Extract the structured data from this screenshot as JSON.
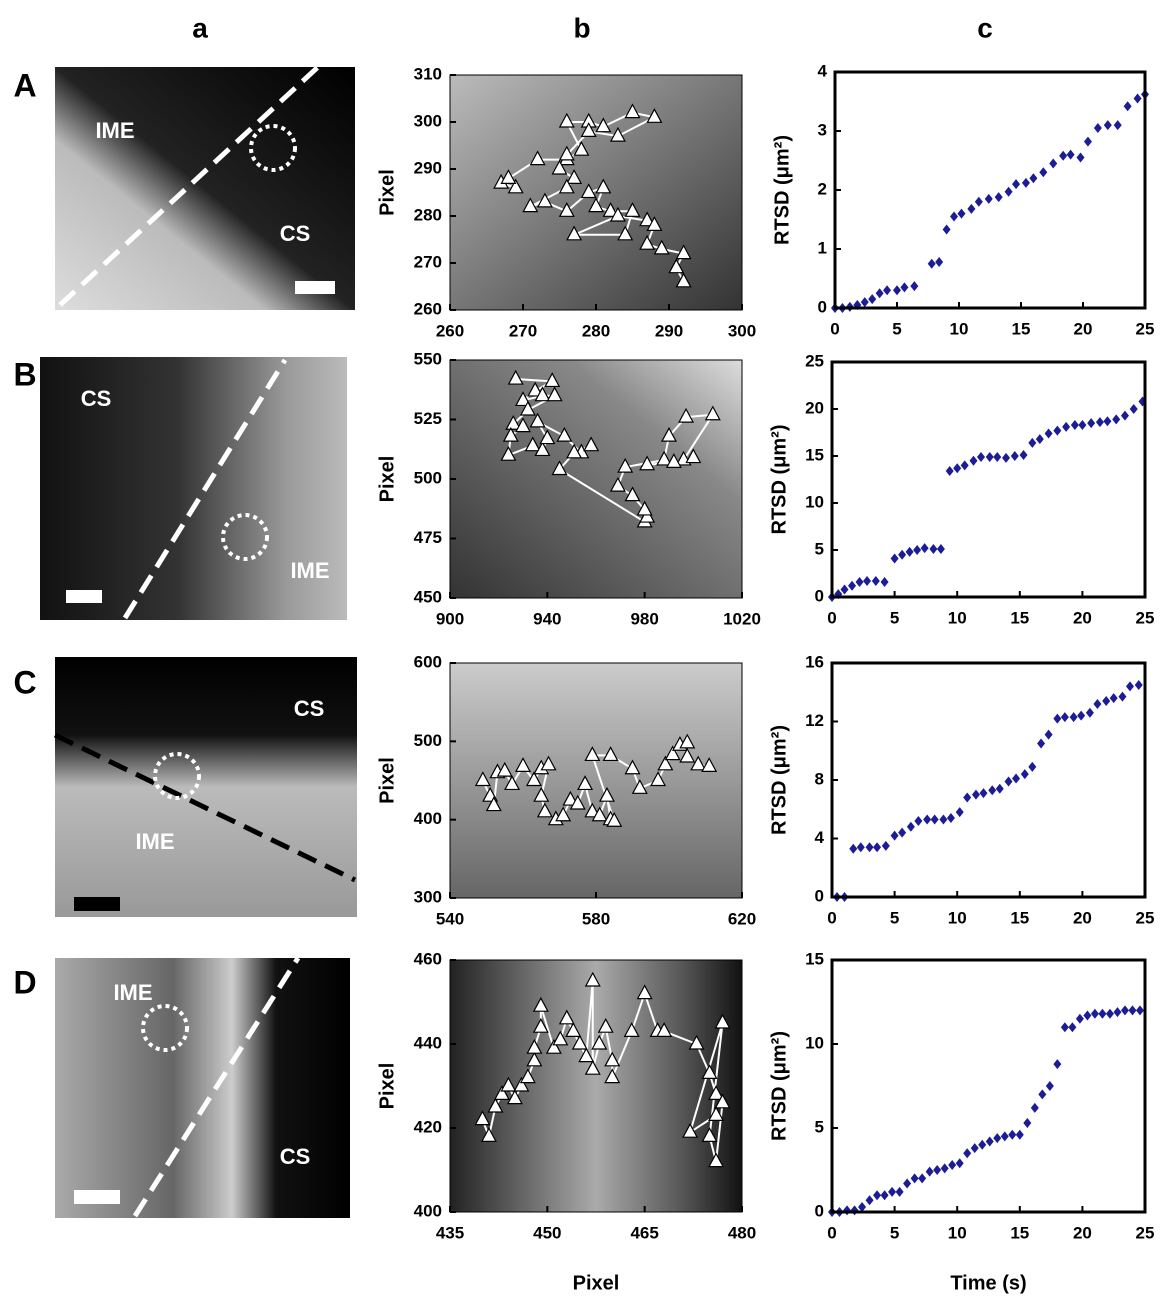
{
  "column_labels": [
    "a",
    "b",
    "c"
  ],
  "row_labels": [
    "A",
    "B",
    "C",
    "D"
  ],
  "images": [
    {
      "labels": [
        "IME",
        "CS"
      ]
    },
    {
      "labels": [
        "CS",
        "IME"
      ]
    },
    {
      "labels": [
        "CS",
        "IME"
      ]
    },
    {
      "labels": [
        "IME",
        "CS"
      ]
    }
  ],
  "chart_data": [
    {
      "type": "line",
      "ylabel": "Pixel",
      "color": "#ffffff",
      "x": [
        267,
        269,
        268,
        272,
        276,
        278,
        276,
        279,
        281,
        285,
        288,
        283,
        279,
        276,
        275,
        277,
        276,
        271,
        273,
        276,
        279,
        281,
        280,
        282,
        285,
        284,
        277,
        283,
        287,
        288,
        287,
        289,
        292,
        291,
        292
      ],
      "values": [
        287,
        286,
        288,
        292,
        292,
        294,
        300,
        300,
        299,
        302,
        301,
        297,
        298,
        293,
        290,
        288,
        286,
        282,
        283,
        281,
        285,
        286,
        282,
        281,
        281,
        276,
        276,
        280,
        279,
        278,
        274,
        273,
        272,
        269,
        266
      ],
      "xlim": [
        260,
        300
      ],
      "xticks": [
        260,
        270,
        280,
        290,
        300
      ],
      "ylim": [
        260,
        310
      ],
      "yticks": [
        260,
        270,
        280,
        290,
        300,
        310
      ]
    },
    {
      "type": "scatter",
      "ylabel": "RTSD (μm²)",
      "color": "#1c1c96",
      "x": [
        0,
        0.6,
        1.2,
        1.8,
        2.4,
        3,
        3.6,
        4.2,
        5,
        5.6,
        6.4,
        7.8,
        8.4,
        9,
        9.6,
        10.2,
        11,
        11.6,
        12.4,
        13.2,
        14,
        14.6,
        15.4,
        16,
        16.8,
        17.6,
        18.4,
        19,
        19.8,
        20.4,
        21.2,
        22,
        22.8,
        23.6,
        24.4,
        25
      ],
      "values": [
        0,
        0,
        0.02,
        0.05,
        0.1,
        0.15,
        0.25,
        0.3,
        0.3,
        0.35,
        0.37,
        0.75,
        0.78,
        1.33,
        1.55,
        1.6,
        1.68,
        1.8,
        1.85,
        1.88,
        1.97,
        2.1,
        2.12,
        2.2,
        2.3,
        2.45,
        2.58,
        2.6,
        2.55,
        2.82,
        3.05,
        3.1,
        3.1,
        3.42,
        3.55,
        3.62
      ],
      "xlim": [
        0,
        25
      ],
      "xticks": [
        0,
        5,
        10,
        15,
        20,
        25
      ],
      "ylim": [
        0,
        4
      ],
      "yticks": [
        0,
        1,
        2,
        3,
        4
      ]
    },
    {
      "type": "line",
      "ylabel": "Pixel",
      "color": "#ffffff",
      "x": [
        927,
        942,
        935,
        930,
        938,
        943,
        932,
        926,
        930,
        925,
        924,
        934,
        938,
        940,
        936,
        947,
        954,
        958,
        951,
        945,
        980,
        981,
        980,
        975,
        969,
        972,
        988,
        990,
        997,
        1008,
        996,
        1000,
        992,
        981
      ],
      "values": [
        542,
        541,
        537,
        533,
        535,
        535,
        529,
        523,
        522,
        518,
        510,
        514,
        512,
        517,
        524,
        518,
        511,
        514,
        511,
        504,
        482,
        484,
        487,
        493,
        497,
        505,
        508,
        518,
        526,
        527,
        508,
        509,
        507,
        506
      ],
      "xlim": [
        900,
        1020
      ],
      "xticks": [
        900,
        940,
        980,
        1020
      ],
      "ylim": [
        450,
        550
      ],
      "yticks": [
        450,
        475,
        500,
        525,
        550
      ]
    },
    {
      "type": "scatter",
      "ylabel": "RTSD (μm²)",
      "color": "#1c1c96",
      "x": [
        0,
        0.5,
        1,
        1.6,
        2.2,
        2.8,
        3.5,
        4.2,
        5,
        5.6,
        6.2,
        6.8,
        7.4,
        8.1,
        8.7,
        9.4,
        10,
        10.6,
        11.3,
        11.9,
        12.6,
        13.2,
        13.9,
        14.6,
        15.3,
        16,
        16.6,
        17.3,
        18,
        18.7,
        19.4,
        20,
        20.7,
        21.4,
        22,
        22.7,
        23.4,
        24.1,
        24.8
      ],
      "values": [
        0,
        0.3,
        0.8,
        1.2,
        1.6,
        1.7,
        1.7,
        1.6,
        4.1,
        4.5,
        4.8,
        5,
        5.2,
        5.1,
        5.1,
        13.4,
        13.7,
        14,
        14.5,
        14.9,
        14.9,
        14.9,
        14.8,
        15,
        15.1,
        16.4,
        16.8,
        17.4,
        17.7,
        18.1,
        18.3,
        18.3,
        18.5,
        18.6,
        18.7,
        18.9,
        19.3,
        20,
        20.8
      ],
      "xlim": [
        0,
        25
      ],
      "xticks": [
        0,
        5,
        10,
        15,
        20,
        25
      ],
      "ylim": [
        0,
        25
      ],
      "yticks": [
        0,
        5,
        10,
        15,
        20,
        25
      ]
    },
    {
      "type": "line",
      "ylabel": "Pixel",
      "color": "#ffffff",
      "x": [
        549,
        551,
        552,
        553,
        555,
        557,
        560,
        563,
        565,
        567,
        565,
        566,
        569,
        571,
        573,
        575,
        577,
        579,
        581,
        583,
        584,
        585,
        579,
        584,
        590,
        592,
        597,
        599,
        601,
        603,
        605,
        605,
        608,
        611
      ],
      "values": [
        450,
        430,
        418,
        460,
        462,
        445,
        468,
        450,
        465,
        470,
        430,
        410,
        400,
        405,
        425,
        420,
        445,
        410,
        405,
        430,
        400,
        398,
        482,
        482,
        465,
        440,
        450,
        470,
        483,
        495,
        498,
        480,
        470,
        468
      ],
      "xlim": [
        540,
        620
      ],
      "xticks": [
        540,
        580,
        620
      ],
      "ylim": [
        300,
        600
      ],
      "yticks": [
        300,
        400,
        500,
        600
      ]
    },
    {
      "type": "scatter",
      "ylabel": "RTSD (μm²)",
      "color": "#1c1c96",
      "x": [
        0.4,
        1,
        1.7,
        2.3,
        3,
        3.6,
        4.3,
        5,
        5.6,
        6.3,
        6.9,
        7.6,
        8.2,
        8.9,
        9.5,
        10.2,
        10.8,
        11.5,
        12.1,
        12.8,
        13.4,
        14.1,
        14.7,
        15.4,
        16,
        16.7,
        17.3,
        18,
        18.6,
        19.3,
        19.9,
        20.6,
        21.2,
        21.9,
        22.5,
        23.2,
        23.8,
        24.5
      ],
      "values": [
        0,
        0,
        3.3,
        3.4,
        3.4,
        3.4,
        3.5,
        4.2,
        4.4,
        4.8,
        5.2,
        5.3,
        5.3,
        5.3,
        5.4,
        5.8,
        6.8,
        7,
        7.1,
        7.3,
        7.4,
        7.9,
        8.1,
        8.4,
        8.9,
        10.5,
        11.1,
        12.2,
        12.3,
        12.3,
        12.4,
        12.6,
        13.2,
        13.4,
        13.6,
        13.7,
        14.4,
        14.5
      ],
      "xlim": [
        0,
        25
      ],
      "xticks": [
        0,
        5,
        10,
        15,
        20,
        25
      ],
      "ylim": [
        0,
        16
      ],
      "yticks": [
        0,
        4,
        8,
        12,
        16
      ]
    },
    {
      "type": "line",
      "ylabel": "Pixel",
      "xlabel": "Pixel",
      "color": "#ffffff",
      "x": [
        440,
        441,
        442,
        443,
        444,
        445,
        446,
        447,
        448,
        448,
        449,
        449,
        451,
        452,
        453,
        454,
        455,
        456,
        457,
        457,
        458,
        459,
        460,
        460,
        463,
        465,
        467,
        468,
        473,
        475,
        476,
        477,
        476,
        475,
        477,
        472,
        476
      ],
      "values": [
        422,
        418,
        425,
        428,
        430,
        427,
        430,
        432,
        436,
        439,
        444,
        449,
        439,
        441,
        446,
        443,
        440,
        437,
        455,
        434,
        440,
        444,
        436,
        432,
        443,
        452,
        443,
        443,
        440,
        433,
        428,
        426,
        412,
        418,
        445,
        419,
        423
      ],
      "xlim": [
        435,
        480
      ],
      "xticks": [
        435,
        450,
        465,
        480
      ],
      "ylim": [
        400,
        460
      ],
      "yticks": [
        400,
        420,
        440,
        460
      ]
    },
    {
      "type": "scatter",
      "ylabel": "RTSD (μm²)",
      "xlabel": "Time (s)",
      "color": "#1c1c96",
      "x": [
        0,
        0.6,
        1.2,
        1.8,
        2.4,
        3,
        3.6,
        4.2,
        4.8,
        5.4,
        6,
        6.6,
        7.2,
        7.8,
        8.4,
        9,
        9.6,
        10.2,
        10.8,
        11.4,
        12,
        12.6,
        13.2,
        13.8,
        14.4,
        15,
        15.6,
        16.2,
        16.8,
        17.4,
        18,
        18.6,
        19.2,
        19.8,
        20.4,
        21,
        21.6,
        22.2,
        22.8,
        23.4,
        24,
        24.6
      ],
      "values": [
        0,
        0,
        0.1,
        0.1,
        0.3,
        0.7,
        1,
        1,
        1.2,
        1.2,
        1.7,
        2,
        2,
        2.4,
        2.5,
        2.6,
        2.8,
        2.9,
        3.5,
        3.8,
        4,
        4.2,
        4.4,
        4.5,
        4.6,
        4.6,
        5.3,
        6.2,
        7,
        7.5,
        8.8,
        11,
        11,
        11.5,
        11.7,
        11.8,
        11.8,
        11.8,
        11.9,
        12,
        12,
        12
      ],
      "xlim": [
        0,
        25
      ],
      "xticks": [
        0,
        5,
        10,
        15,
        20,
        25
      ],
      "ylim": [
        0,
        15
      ],
      "yticks": [
        0,
        5,
        10,
        15
      ]
    }
  ]
}
